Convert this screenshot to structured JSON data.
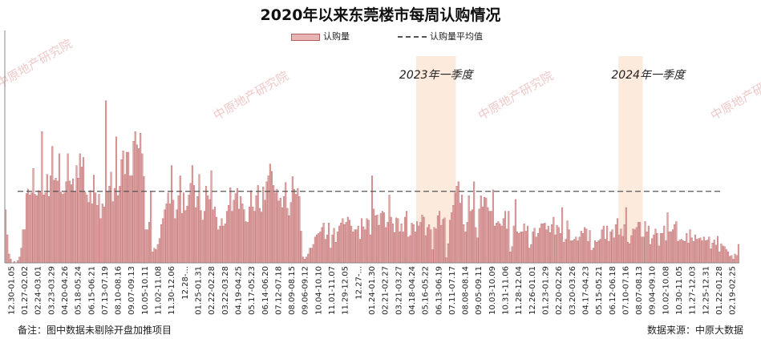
{
  "chart_data": {
    "type": "bar",
    "title": "2020年以来东莞楼市每周认购情况",
    "legend": [
      {
        "label": "认购量",
        "kind": "bar",
        "color": "#e0a8a8"
      },
      {
        "label": "认购量平均值",
        "kind": "dashed-line",
        "color": "#555555"
      }
    ],
    "average": 97,
    "ylim": [
      0,
      300
    ],
    "grid": false,
    "tick_labels": [
      "12.30-01.05",
      "01.27-02.02",
      "02.24-03.01",
      "03.23-03.29",
      "04.20-04.26",
      "05.18-05.24",
      "06.15-06.21",
      "07.13-07.19",
      "08.10-08.16",
      "09.07-09.13",
      "10.05-10.11",
      "11.02-11.08",
      "11.30-12.06",
      "12.28-...",
      "01.25-01.31",
      "02.22-02.28",
      "03.22-03.28",
      "04.19-04.25",
      "05.17-05.23",
      "06.14-06.20",
      "07.12-07.18",
      "08.09-08.15",
      "09.06-09.12",
      "10.04-10.10",
      "11.01-11.07",
      "11.29-12.05",
      "12.27-...",
      "01.24-01.30",
      "02.21-02.27",
      "03.21-03.27",
      "04.18-04.24",
      "05.16-05.22",
      "06.13-06.19",
      "07.11-07.17",
      "08.08-08.14",
      "09.05-09.11",
      "10.03-10.09",
      "10.31-11.06",
      "11.28-12.04",
      "12.26-01.01",
      "01.23-01.29",
      "02.20-02.26",
      "03.20-03.26",
      "04.17-04.23",
      "05.15-05.21",
      "06.12-06.18",
      "07.10-07.16",
      "08.07-08.13",
      "09.04-09.10",
      "10.02-10.08",
      "10.30-11.05",
      "11.27-12.03",
      "12.25-12.31",
      "01.22-01.28",
      "02.19-02.25"
    ],
    "values": [
      72,
      38,
      12,
      5,
      0,
      2,
      0,
      3,
      8,
      20,
      45,
      45,
      94,
      100,
      92,
      95,
      128,
      93,
      91,
      98,
      96,
      178,
      92,
      95,
      120,
      90,
      118,
      158,
      112,
      115,
      111,
      148,
      96,
      93,
      95,
      110,
      148,
      111,
      106,
      114,
      96,
      132,
      115,
      148,
      130,
      143,
      96,
      92,
      82,
      98,
      80,
      119,
      95,
      78,
      93,
      60,
      80,
      76,
      220,
      96,
      104,
      123,
      83,
      101,
      171,
      91,
      104,
      140,
      152,
      120,
      150,
      150,
      118,
      118,
      165,
      178,
      160,
      155,
      176,
      148,
      117,
      45,
      45,
      55,
      97,
      15,
      20,
      18,
      25,
      33,
      52,
      60,
      72,
      80,
      95,
      80,
      132,
      85,
      60,
      72,
      91,
      118,
      67,
      95,
      71,
      77,
      92,
      108,
      132,
      105,
      75,
      90,
      120,
      71,
      58,
      70,
      104,
      91,
      86,
      125,
      72,
      76,
      62,
      45,
      50,
      60,
      50,
      53,
      70,
      78,
      102,
      70,
      85,
      94,
      101,
      73,
      90,
      80,
      72,
      56,
      55,
      76,
      98,
      76,
      70,
      91,
      105,
      74,
      69,
      103,
      85,
      110,
      118,
      134,
      124,
      105,
      95,
      100,
      84,
      88,
      75,
      90,
      109,
      74,
      64,
      82,
      117,
      100,
      93,
      101,
      90,
      43,
      8,
      5,
      8,
      12,
      20,
      20,
      25,
      35,
      38,
      40,
      42,
      48,
      54,
      32,
      38,
      54,
      20,
      38,
      47,
      28,
      42,
      50,
      54,
      60,
      52,
      55,
      62,
      58,
      50,
      42,
      45,
      45,
      50,
      32,
      60,
      49,
      45,
      60,
      58,
      38,
      118,
      73,
      64,
      65,
      51,
      67,
      70,
      68,
      48,
      55,
      92,
      62,
      53,
      41,
      61,
      60,
      42,
      53,
      42,
      62,
      70,
      35,
      37,
      54,
      52,
      42,
      56,
      50,
      55,
      65,
      62,
      37,
      48,
      52,
      45,
      18,
      48,
      46,
      64,
      70,
      51,
      59,
      61,
      7,
      26,
      58,
      68,
      78,
      95,
      104,
      110,
      81,
      92,
      52,
      42,
      55,
      91,
      70,
      72,
      110,
      48,
      34,
      73,
      91,
      76,
      89,
      88,
      75,
      70,
      70,
      99,
      50,
      54,
      56,
      53,
      50,
      60,
      70,
      46,
      70,
      15,
      22,
      50,
      86,
      42,
      40,
      42,
      42,
      53,
      43,
      50,
      20,
      25,
      42,
      47,
      35,
      40,
      47,
      53,
      53,
      54,
      45,
      50,
      41,
      52,
      62,
      38,
      51,
      48,
      40,
      75,
      28,
      32,
      57,
      45,
      30,
      30,
      32,
      35,
      30,
      35,
      43,
      40,
      48,
      46,
      29,
      44,
      17,
      20,
      30,
      28,
      30,
      32,
      45,
      50,
      32,
      50,
      29,
      42,
      45,
      34,
      52,
      60,
      38,
      46,
      36,
      52,
      75,
      28,
      26,
      37,
      46,
      45,
      48,
      55,
      55,
      35,
      35,
      56,
      42,
      50,
      25,
      33,
      38,
      46,
      40,
      23,
      40,
      40,
      50,
      30,
      68,
      42,
      42,
      45,
      52,
      56,
      29,
      31,
      32,
      30,
      29,
      40,
      27,
      45,
      34,
      29,
      38,
      32,
      33,
      34,
      30,
      35,
      30,
      31,
      35,
      19,
      27,
      31,
      24,
      36,
      15,
      26,
      23,
      22,
      18,
      15,
      9,
      10,
      5,
      12,
      10,
      25
    ],
    "highlight_bands": [
      {
        "label": "2023年一季度",
        "start_index": 238,
        "end_index": 260
      },
      {
        "label": "2024年一季度",
        "start_index": 355,
        "end_index": 368
      }
    ],
    "watermark": "中原地产研究院"
  },
  "footer": {
    "note": "备注：图中数据未剔除开盘加推项目",
    "source": "数据来源：中原大数据"
  }
}
